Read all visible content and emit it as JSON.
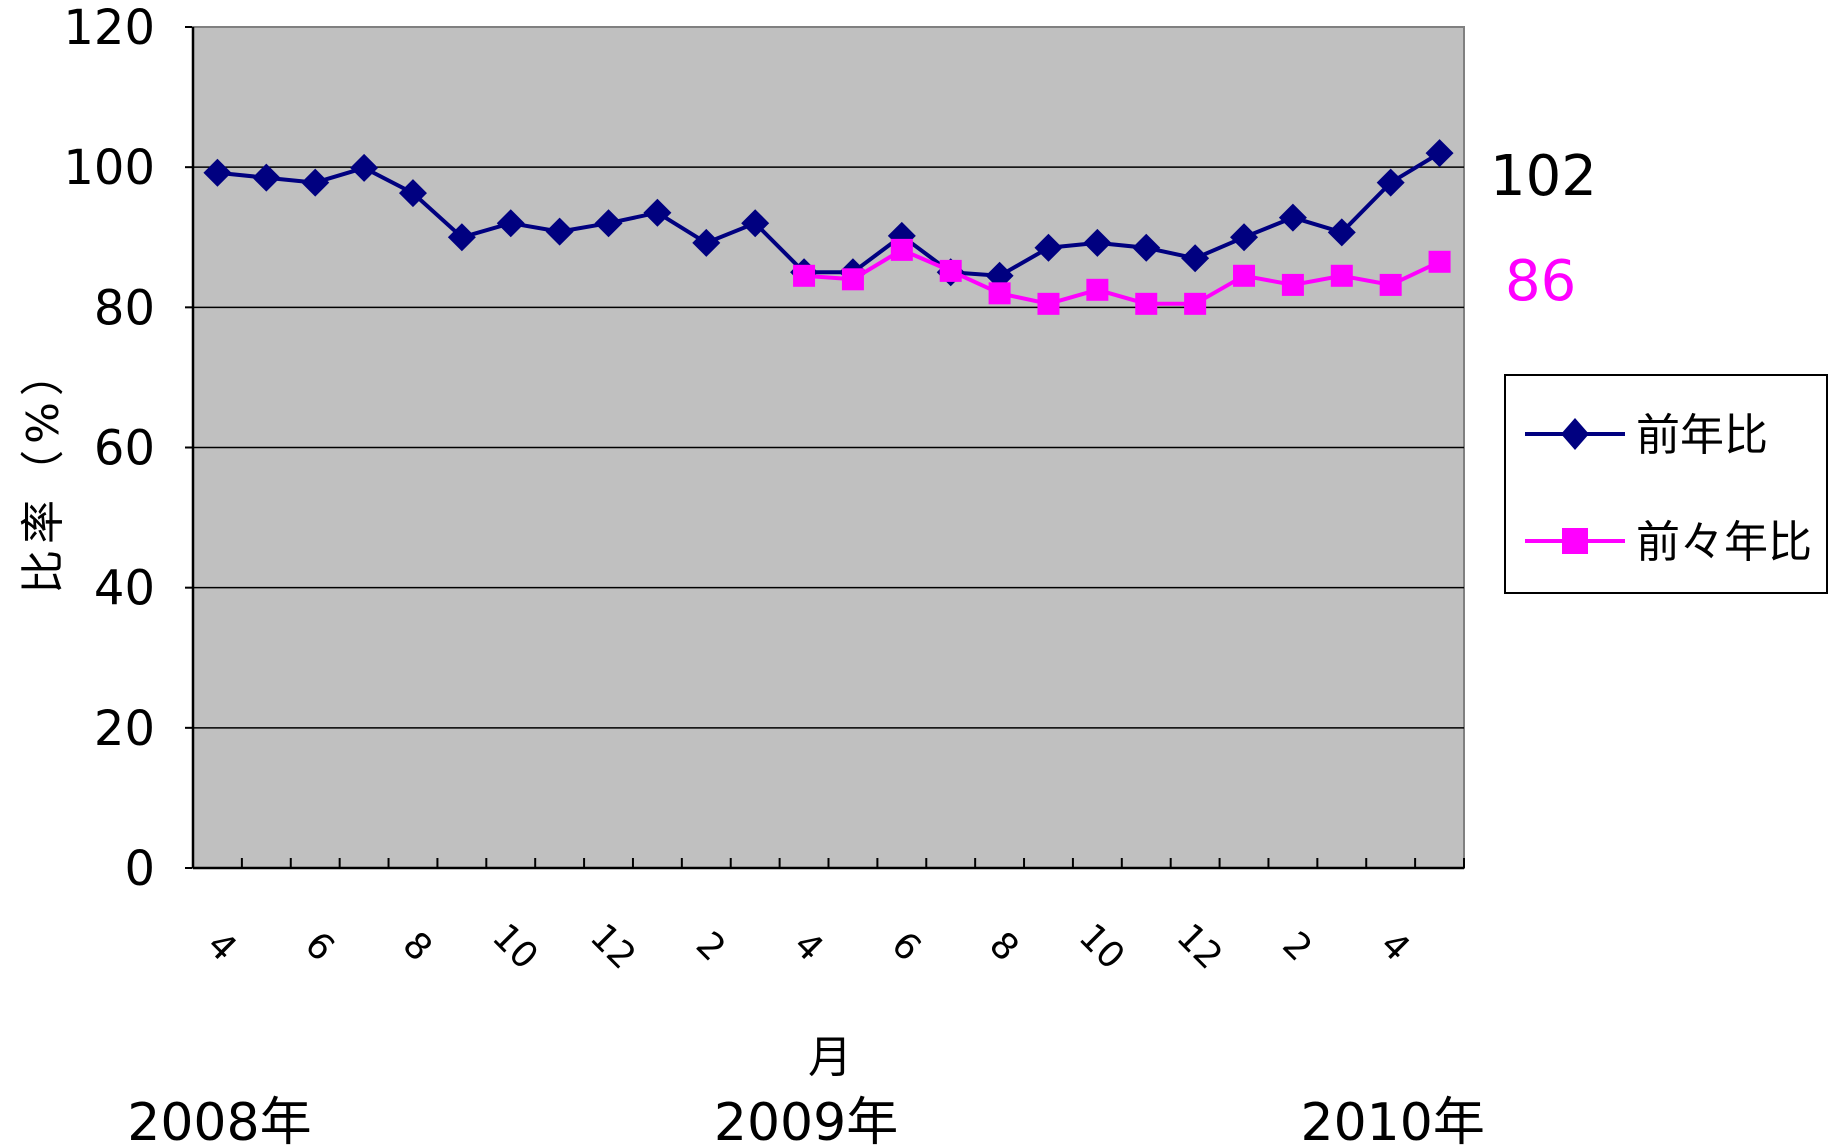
{
  "chart_data": {
    "type": "line",
    "ylabel": "比率（%）",
    "xlabel": "月",
    "ylim": [
      0,
      120
    ],
    "yticks": [
      "0",
      "20",
      "40",
      "60",
      "80",
      "100",
      "120"
    ],
    "x_tick_labels": [
      "4",
      "6",
      "8",
      "10",
      "12",
      "2",
      "4",
      "6",
      "8",
      "10",
      "12",
      "2",
      "4"
    ],
    "year_labels": [
      "2008年",
      "2009年",
      "2010年"
    ],
    "grid": true,
    "legend_position": "right",
    "series": [
      {
        "name": "前年比",
        "color": "#000080",
        "marker": "diamond",
        "start_index": 0,
        "values": [
          99.2,
          98.5,
          97.8,
          99.9,
          96.3,
          90.0,
          92.0,
          90.8,
          92.0,
          93.5,
          89.2,
          92.0,
          85.0,
          85.0,
          90.2,
          85.0,
          84.5,
          88.5,
          89.2,
          88.5,
          87.0,
          90.0,
          92.8,
          90.7,
          97.8,
          102.0
        ]
      },
      {
        "name": "前々年比",
        "color": "#FF00FF",
        "marker": "square",
        "start_index": 12,
        "values": [
          84.5,
          84.0,
          88.2,
          85.2,
          82.0,
          80.5,
          82.5,
          80.5,
          80.5,
          84.5,
          83.2,
          84.5,
          83.2,
          86.5
        ]
      }
    ],
    "annotations": [
      {
        "text": "102",
        "color": "#000000"
      },
      {
        "text": "86",
        "color": "#FF00FF"
      }
    ]
  }
}
